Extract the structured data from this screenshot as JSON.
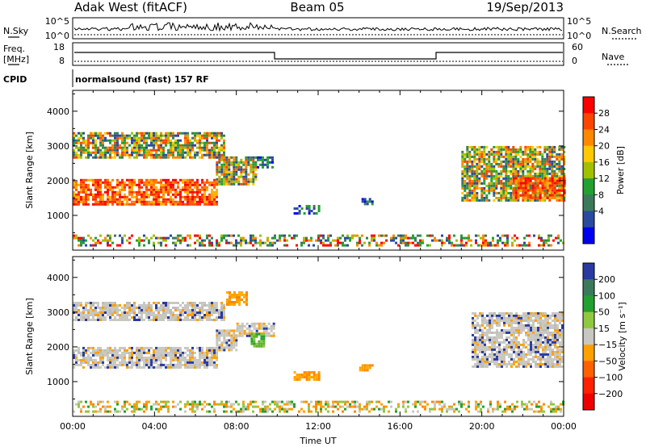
{
  "header": {
    "radar": "Adak West (fitACF)",
    "beam": "Beam 05",
    "date": "19/Sep/2013"
  },
  "params": {
    "nsky_label": "N.Sky",
    "nsearch_label": "N.Search",
    "nsky_ticks": [
      "10^5",
      "10^0"
    ],
    "nsearch_ticks": [
      "10^5",
      "10^0"
    ],
    "freq_label_1": "Freq.",
    "freq_label_2": "[MHz]",
    "freq_ticks": [
      "18",
      "8"
    ],
    "nave_label": "Nave",
    "nave_ticks": [
      "60",
      "0"
    ],
    "cpid_label": "CPID",
    "cpid_text": "normalsound (fast) 157 RF"
  },
  "chart_data": [
    {
      "type": "heatmap",
      "name": "power",
      "ylabel": "Slant Range [km]",
      "xlabel": "",
      "xlim": [
        0,
        24
      ],
      "ylim": [
        0,
        4600
      ],
      "yticks": [
        1000,
        2000,
        3000,
        4000
      ],
      "xtick_labels": [
        "00:00",
        "04:00",
        "08:00",
        "12:00",
        "16:00",
        "20:00",
        "00:00"
      ],
      "colorbar": {
        "label": "Power [dB]",
        "ticks": [
          "28",
          "24",
          "20",
          "16",
          "12",
          "8",
          "4"
        ],
        "colors": [
          "#ff0000",
          "#ff4400",
          "#ff8800",
          "#ffc800",
          "#a0c000",
          "#22a030",
          "#3a7a5a",
          "#2a4aa0",
          "#0000ee"
        ]
      },
      "regions": [
        {
          "t0": 0.0,
          "t1": 7.4,
          "r0": 2700,
          "r1": 3400,
          "level": "mid"
        },
        {
          "t0": 0.0,
          "t1": 7.0,
          "r0": 1350,
          "r1": 2050,
          "level": "high"
        },
        {
          "t0": 7.0,
          "t1": 9.0,
          "r0": 1900,
          "r1": 2700,
          "level": "mid"
        },
        {
          "t0": 9.0,
          "t1": 9.8,
          "r0": 2400,
          "r1": 2700,
          "level": "low"
        },
        {
          "t0": 10.8,
          "t1": 12.1,
          "r0": 1050,
          "r1": 1300,
          "level": "low"
        },
        {
          "t0": 14.0,
          "t1": 14.6,
          "r0": 1300,
          "r1": 1500,
          "level": "low"
        },
        {
          "t0": 19.0,
          "t1": 24.0,
          "r0": 1400,
          "r1": 3000,
          "level": "mid"
        },
        {
          "t0": 21.5,
          "t1": 24.0,
          "r0": 1500,
          "r1": 2100,
          "level": "high"
        },
        {
          "t0": 0.0,
          "t1": 24.0,
          "r0": 150,
          "r1": 450,
          "level": "noise"
        }
      ]
    },
    {
      "type": "heatmap",
      "name": "velocity",
      "ylabel": "Slant Range [km]",
      "xlabel": "Time UT",
      "xlim": [
        0,
        24
      ],
      "ylim": [
        0,
        4600
      ],
      "yticks": [
        1000,
        2000,
        3000,
        4000
      ],
      "xtick_labels": [
        "00:00",
        "04:00",
        "08:00",
        "12:00",
        "16:00",
        "20:00",
        "00:00"
      ],
      "colorbar": {
        "label": "Velocity [m s⁻¹]",
        "ticks": [
          "200",
          "100",
          "50",
          "15",
          "−15",
          "−50",
          "−100",
          "−200"
        ],
        "colors": [
          "#2a3aa0",
          "#3a7a5a",
          "#22a030",
          "#90c840",
          "#c8c8c0",
          "#ffa000",
          "#ff6000",
          "#ff2000",
          "#ee0000"
        ]
      },
      "regions": [
        {
          "t0": 0.0,
          "t1": 7.4,
          "r0": 2800,
          "r1": 3300,
          "level": "ground"
        },
        {
          "t0": 0.0,
          "t1": 7.0,
          "r0": 1400,
          "r1": 2000,
          "level": "ground"
        },
        {
          "t0": 7.0,
          "t1": 8.0,
          "r0": 1900,
          "r1": 2500,
          "level": "ground"
        },
        {
          "t0": 8.0,
          "t1": 9.8,
          "r0": 2300,
          "r1": 2700,
          "level": "ground"
        },
        {
          "t0": 7.5,
          "t1": 8.5,
          "r0": 3200,
          "r1": 3600,
          "level": "orange"
        },
        {
          "t0": 8.7,
          "t1": 9.3,
          "r0": 2000,
          "r1": 2400,
          "level": "green"
        },
        {
          "t0": 10.8,
          "t1": 12.1,
          "r0": 1050,
          "r1": 1300,
          "level": "orange"
        },
        {
          "t0": 14.0,
          "t1": 14.6,
          "r0": 1300,
          "r1": 1500,
          "level": "orange"
        },
        {
          "t0": 19.5,
          "t1": 24.0,
          "r0": 1400,
          "r1": 3000,
          "level": "ground"
        },
        {
          "t0": 0.0,
          "t1": 24.0,
          "r0": 150,
          "r1": 450,
          "level": "noise"
        }
      ]
    }
  ]
}
